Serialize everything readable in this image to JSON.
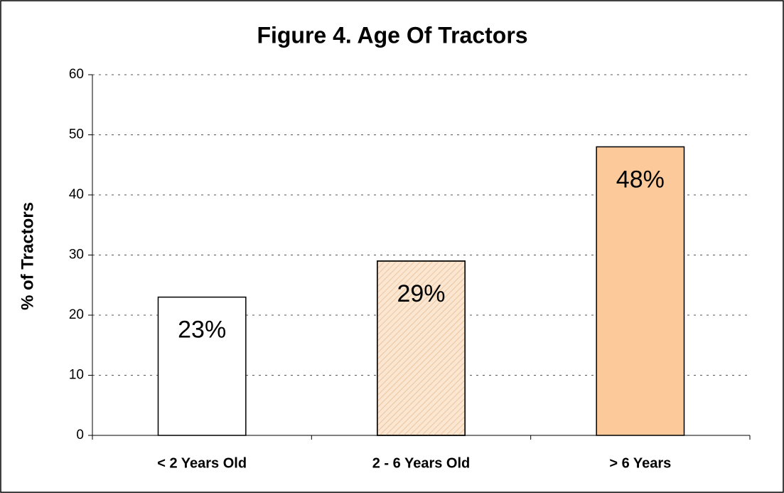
{
  "chart_data": {
    "type": "bar",
    "title": "Figure 4.  Age Of Tractors",
    "y_label": "% of Tractors",
    "categories": [
      "< 2 Years Old",
      "2 - 6 Years Old",
      "> 6 Years"
    ],
    "values": [
      23,
      29,
      48
    ],
    "value_labels": [
      "23%",
      "29%",
      "48%"
    ],
    "colors": [
      "#ffffff",
      "#fbe6d2",
      "#fcc99a"
    ],
    "hatch": [
      false,
      true,
      false
    ],
    "ylim": [
      0,
      60
    ],
    "yticks": [
      0,
      10,
      20,
      30,
      40,
      50,
      60
    ],
    "grid": true
  }
}
